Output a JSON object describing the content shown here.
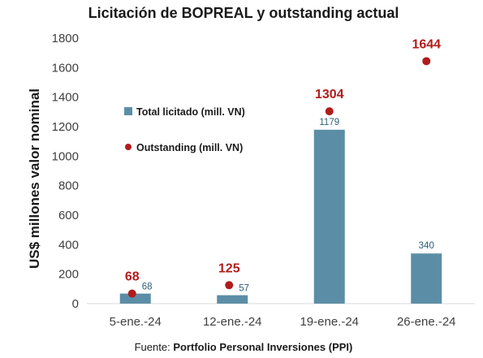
{
  "chart_data": {
    "type": "bar",
    "title": "Licitación de BOPREAL y outstanding actual",
    "ylabel": "US$ millones valor nominal",
    "xlabel": "",
    "ylim": [
      0,
      1800
    ],
    "yticks": [
      0,
      200,
      400,
      600,
      800,
      1000,
      1200,
      1400,
      1600,
      1800
    ],
    "categories": [
      "5-ene.-24",
      "12-ene.-24",
      "19-ene.-24",
      "26-ene.-24"
    ],
    "series": [
      {
        "name": "Total licitado (mill. VN)",
        "kind": "bar",
        "color": "#5b8ea6",
        "values": [
          68,
          57,
          1179,
          340
        ]
      },
      {
        "name": "Outstanding (mill. VN)",
        "kind": "point",
        "color": "#b01c1c",
        "values": [
          68,
          125,
          1304,
          1644
        ]
      }
    ],
    "grid": false,
    "legend": "top-left"
  },
  "source": {
    "prefix": "Fuente: ",
    "name": "Portfolio Personal Inversiones (PPI)"
  }
}
